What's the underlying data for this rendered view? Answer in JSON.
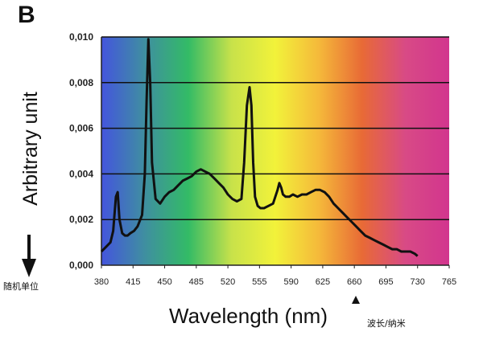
{
  "panel_label": "B",
  "annotations": {
    "ylabel_note": "随机单位",
    "xlabel_note": "波长/纳米"
  },
  "colors": {
    "spectrum": [
      "#4455dd",
      "#3f8fa0",
      "#33bb66",
      "#c8e24a",
      "#f2f23a",
      "#f5b93a",
      "#e86a36",
      "#d84a86",
      "#d2358e"
    ],
    "line": "#111111",
    "grid": "#111111"
  },
  "chart_data": {
    "type": "line",
    "title": "",
    "xlabel": "Wavelength (nm)",
    "ylabel": "Arbitrary unit",
    "xlim": [
      380,
      765
    ],
    "ylim": [
      0,
      0.01
    ],
    "xticks": [
      "380",
      "415",
      "450",
      "485",
      "520",
      "555",
      "590",
      "625",
      "660",
      "695",
      "730",
      "765"
    ],
    "yticks": [
      "0,000",
      "0,002",
      "0,004",
      "0,006",
      "0,008",
      "0,010"
    ],
    "grid": "horizontal",
    "series": [
      {
        "x": [
          380,
          385,
          390,
          393,
          396,
          398,
          400,
          403,
          406,
          409,
          412,
          416,
          420,
          425,
          428,
          430,
          432,
          434,
          436,
          440,
          445,
          450,
          455,
          460,
          465,
          470,
          475,
          480,
          485,
          490,
          495,
          500,
          505,
          510,
          515,
          520,
          525,
          530,
          535,
          538,
          541,
          544,
          546,
          548,
          550,
          553,
          556,
          560,
          565,
          570,
          575,
          577,
          579,
          581,
          584,
          588,
          592,
          597,
          602,
          607,
          612,
          617,
          622,
          627,
          632,
          637,
          642,
          647,
          652,
          657,
          662,
          667,
          672,
          677,
          682,
          687,
          692,
          697,
          702,
          707,
          712,
          717,
          722,
          727,
          730
        ],
        "y": [
          0.0006,
          0.0008,
          0.001,
          0.0015,
          0.003,
          0.0032,
          0.002,
          0.0014,
          0.0013,
          0.0013,
          0.0014,
          0.0015,
          0.0017,
          0.0022,
          0.004,
          0.0072,
          0.0099,
          0.008,
          0.0045,
          0.0029,
          0.0027,
          0.003,
          0.0032,
          0.0033,
          0.0035,
          0.0037,
          0.0038,
          0.0039,
          0.0041,
          0.0042,
          0.0041,
          0.004,
          0.0038,
          0.0036,
          0.0034,
          0.0031,
          0.0029,
          0.0028,
          0.0029,
          0.0045,
          0.007,
          0.0078,
          0.007,
          0.0045,
          0.003,
          0.0026,
          0.0025,
          0.0025,
          0.0026,
          0.0027,
          0.0033,
          0.0036,
          0.0034,
          0.0031,
          0.003,
          0.003,
          0.0031,
          0.003,
          0.0031,
          0.0031,
          0.0032,
          0.0033,
          0.0033,
          0.0032,
          0.003,
          0.0027,
          0.0025,
          0.0023,
          0.0021,
          0.0019,
          0.0017,
          0.0015,
          0.0013,
          0.0012,
          0.0011,
          0.001,
          0.0009,
          0.0008,
          0.0007,
          0.0007,
          0.0006,
          0.0006,
          0.0006,
          0.0005,
          0.0004
        ]
      }
    ]
  }
}
